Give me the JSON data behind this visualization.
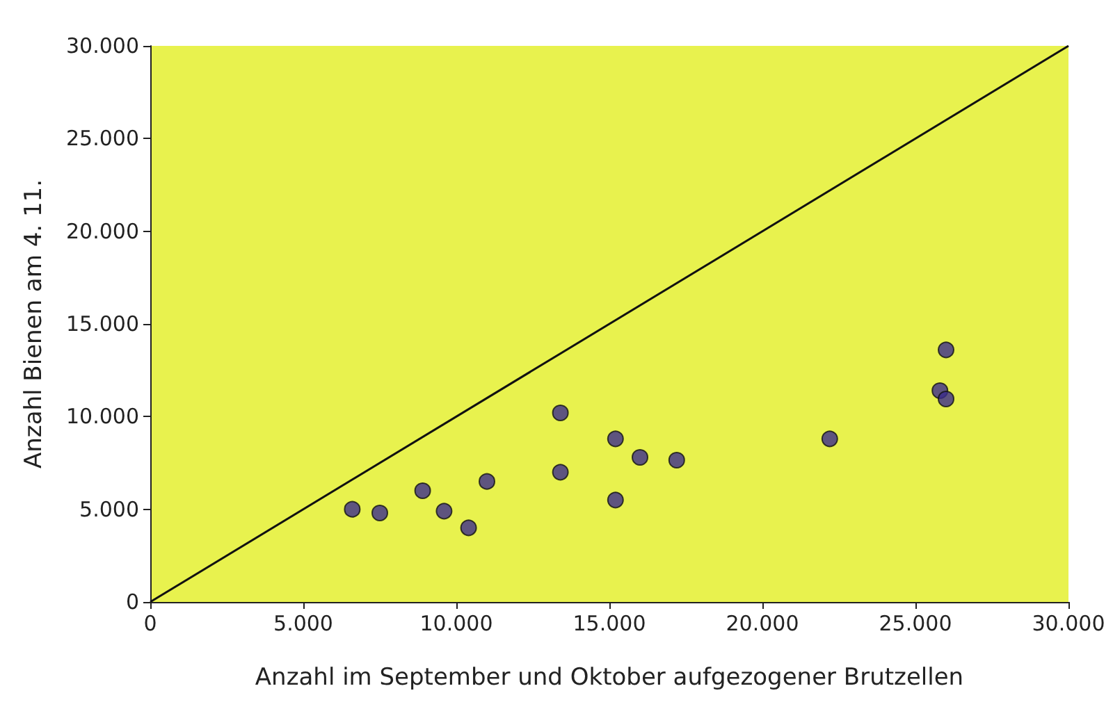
{
  "chart_data": {
    "type": "scatter",
    "xlabel": "Anzahl im September und Oktober aufgezogener Brutzellen",
    "ylabel": "Anzahl Bienen am 4. 11.",
    "xlim": [
      0,
      30000
    ],
    "ylim": [
      0,
      30000
    ],
    "xticks": [
      {
        "value": 0,
        "label": "0"
      },
      {
        "value": 5000,
        "label": "5.000"
      },
      {
        "value": 10000,
        "label": "10.000"
      },
      {
        "value": 15000,
        "label": "15.000"
      },
      {
        "value": 20000,
        "label": "20.000"
      },
      {
        "value": 25000,
        "label": "25.000"
      },
      {
        "value": 30000,
        "label": "30.000"
      }
    ],
    "yticks": [
      {
        "value": 0,
        "label": "0"
      },
      {
        "value": 5000,
        "label": "5.000"
      },
      {
        "value": 10000,
        "label": "10.000"
      },
      {
        "value": 15000,
        "label": "15.000"
      },
      {
        "value": 20000,
        "label": "20.000"
      },
      {
        "value": 25000,
        "label": "25.000"
      },
      {
        "value": 30000,
        "label": "30.000"
      }
    ],
    "grid": false,
    "marker": "circle",
    "series": [
      {
        "color": "#3b2c8c",
        "x": [
          6600,
          7500,
          8900,
          9600,
          10400,
          11000,
          13400,
          13400,
          15200,
          15200,
          16000,
          17200,
          22200,
          26000,
          25800,
          26000
        ],
        "values": [
          5000,
          4800,
          6000,
          4900,
          4000,
          6500,
          10200,
          7000,
          8800,
          5500,
          7800,
          7650,
          8800,
          13600,
          11400,
          10950
        ]
      },
      {
        "type": "line",
        "color": "#111111",
        "line_style": "solid",
        "marker": "none",
        "x": [
          0,
          30000
        ],
        "values": [
          0,
          30000
        ]
      }
    ]
  }
}
